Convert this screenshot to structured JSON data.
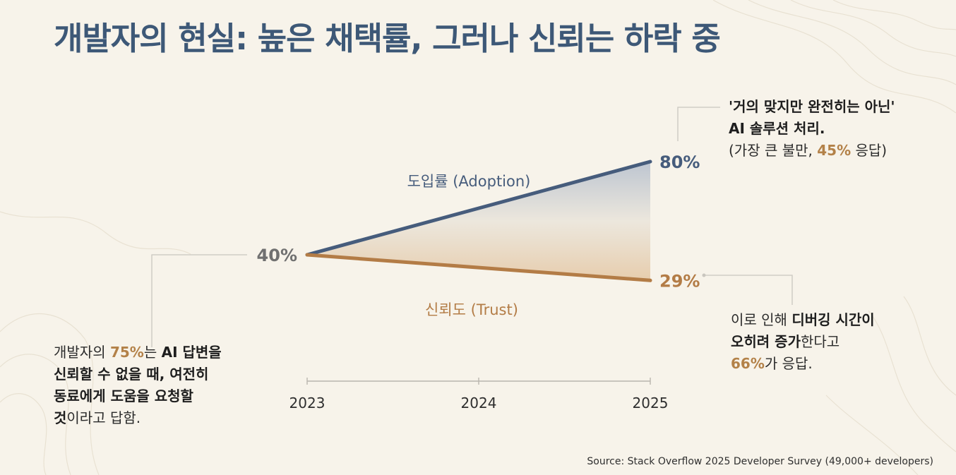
{
  "title": "개발자의 현실: 높은 채택률, 그러나 신뢰는 하락 중",
  "colors": {
    "adoption": "#465c7c",
    "trust": "#b37c46",
    "start": "#707070",
    "accent": "#b38148",
    "axis": "#b9b6ae"
  },
  "chart_data": {
    "type": "line",
    "x": [
      "2023",
      "2024",
      "2025"
    ],
    "ylim": [
      0,
      100
    ],
    "series": [
      {
        "name": "도입률 (Adoption)",
        "x": [
          "2023",
          "2025"
        ],
        "values": [
          40,
          80
        ]
      },
      {
        "name": "신뢰도 (Trust)",
        "x": [
          "2023",
          "2025"
        ],
        "values": [
          40,
          29
        ]
      }
    ],
    "start_label": "40%",
    "end_labels": {
      "adoption": "80%",
      "trust": "29%"
    },
    "fill_between": true,
    "xlabel": "",
    "ylabel": ""
  },
  "notes": {
    "top_right": {
      "line1": "'거의 맞지만 완전히는 아닌'",
      "line2": "AI 솔루션 처리.",
      "line3_pre": "(가장 큰 불만, ",
      "line3_value": "45%",
      "line3_post": " 응답)"
    },
    "bottom_right": {
      "l1_plain": "이로 인해 ",
      "l1_bold": "디버깅 시간이",
      "l2_bold": "오히려 증가",
      "l2_plain": "한다고",
      "l3_value": "66%",
      "l3_plain": "가 응답."
    },
    "left": {
      "l1_plain": "개발자의 ",
      "l1_value": "75%",
      "l1_mid": "는 ",
      "l1_bold": "AI 답변을",
      "l2_bold": "신뢰할 수 없을 때, 여전히",
      "l3_bold": "동료에게 도움을 요청할",
      "l4_bold": "것",
      "l4_plain": "이라고 답함."
    }
  },
  "source": "Source: Stack Overflow 2025 Developer Survey (49,000+ developers)"
}
